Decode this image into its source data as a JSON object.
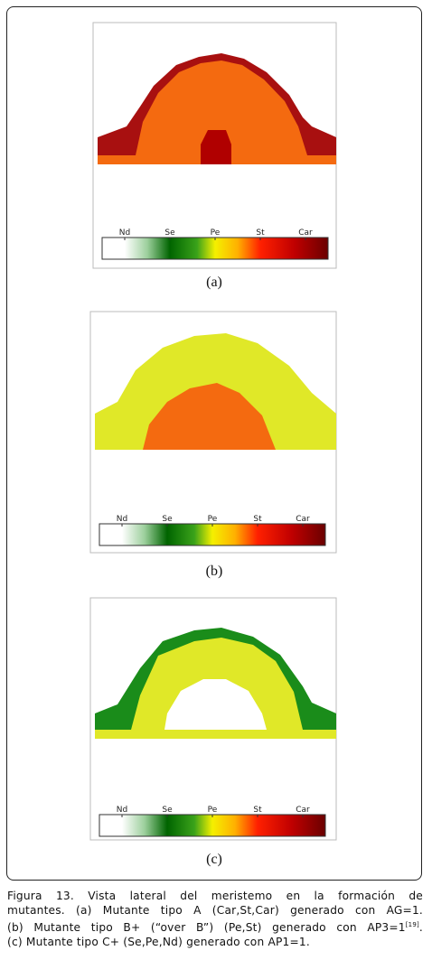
{
  "panels": [
    {
      "label": "(a)",
      "colorbar": [
        "Nd",
        "Se",
        "Pe",
        "St",
        "Car"
      ]
    },
    {
      "label": "(b)",
      "colorbar": [
        "Nd",
        "Se",
        "Pe",
        "St",
        "Car"
      ]
    },
    {
      "label": "(c)",
      "colorbar": [
        "Nd",
        "Se",
        "Pe",
        "St",
        "Car"
      ]
    }
  ],
  "caption": {
    "lines": [
      "Figura 13. Vista lateral del meristemo en la formación de",
      "mutantes. (a) Mutante tipo A (Car,St,Car) generado con AG=1.",
      "(b) Mutante tipo B+ (“over B”) (Pe,St) generado con AP3=1",
      "(c) Mutante tipo C+ (Se,Pe,Nd) generado con AP1=1."
    ],
    "ref": "[19]",
    "ref_end": "."
  }
}
